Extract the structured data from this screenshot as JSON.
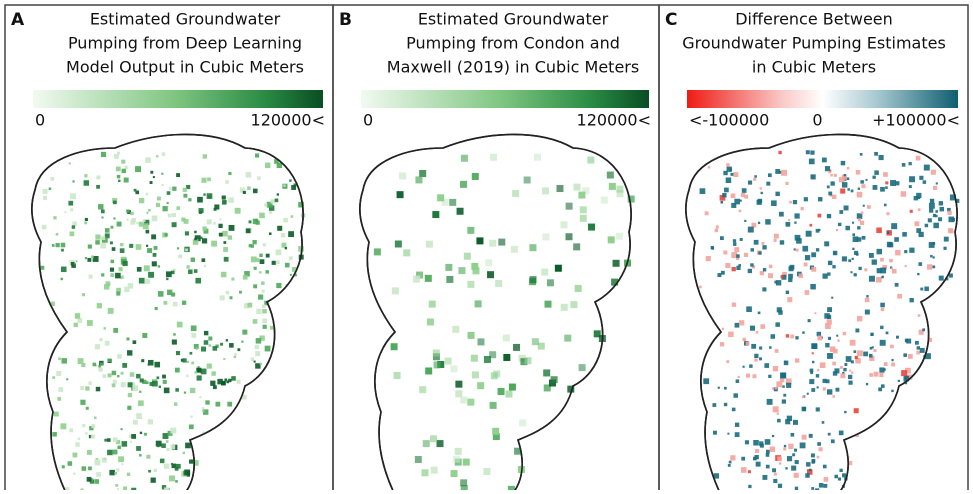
{
  "panels": [
    {
      "letter": "A",
      "title": [
        "Estimated Groundwater",
        "Pumping from Deep Learning",
        "Model Output in Cubic Meters"
      ],
      "scale_labels": [
        "0",
        "120000<"
      ]
    },
    {
      "letter": "B",
      "title": [
        "Estimated Groundwater",
        "Pumping from Condon and",
        "Maxwell (2019) in Cubic Meters"
      ],
      "scale_labels": [
        "0",
        "120000<"
      ]
    },
    {
      "letter": "C",
      "title": [
        "Difference Between",
        "Groundwater Pumping Estimates",
        "in Cubic Meters"
      ],
      "scale_labels": [
        "<-100000",
        "0",
        "+100000<"
      ]
    }
  ]
}
